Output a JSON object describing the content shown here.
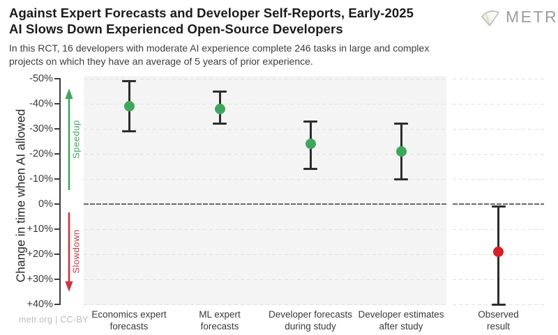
{
  "header": {
    "title_lines": [
      "Against Expert Forecasts and Developer Self-Reports, Early-2025",
      "AI Slows Down Experienced Open-Source Developers"
    ],
    "subtitle_lines": [
      "In this RCT, 16 developers with moderate AI experience complete 246 tasks in large and complex",
      "projects on which they have an average of 5 years of prior experience."
    ],
    "brand": "METR"
  },
  "footer": {
    "credit": "metr.org | CC-BY"
  },
  "chart_data": {
    "type": "scatter",
    "ylabel": "Change in time when AI allowed",
    "y_axis": {
      "min_pct": -50,
      "max_pct": 40,
      "orientation": "negative-is-up",
      "ticks": [
        {
          "value": -50,
          "label": "-50%"
        },
        {
          "value": -40,
          "label": "-40%"
        },
        {
          "value": -30,
          "label": "-30%"
        },
        {
          "value": -20,
          "label": "-20%"
        },
        {
          "value": -10,
          "label": "-10%"
        },
        {
          "value": 0,
          "label": "0%"
        },
        {
          "value": 10,
          "label": "+10%"
        },
        {
          "value": 20,
          "label": "+20%"
        },
        {
          "value": 30,
          "label": "+30%"
        },
        {
          "value": 40,
          "label": "+40%"
        }
      ]
    },
    "zero_line": true,
    "grid": "dashed-horizontal",
    "annotations": {
      "speedup_label": "Speedup",
      "slowdown_label": "Slowdown"
    },
    "colors": {
      "forecast_dot": "#3fa75d",
      "observed_dot": "#d42127",
      "speedup_arrow": "#3fa75d",
      "slowdown_arrow": "#c93540",
      "error_bar": "#2d2d2d",
      "panel_background": "#f4f4f4"
    },
    "panels": [
      {
        "name": "forecasts",
        "points": [
          {
            "id": "economics-expert-forecasts",
            "label_lines": [
              "Economics expert",
              "forecasts"
            ],
            "value_pct": -39,
            "ci_pct": [
              -49,
              -29
            ],
            "dot": "forecast"
          },
          {
            "id": "ml-expert-forecasts",
            "label_lines": [
              "ML expert",
              "forecasts"
            ],
            "value_pct": -38,
            "ci_pct": [
              -45,
              -32
            ],
            "dot": "forecast"
          },
          {
            "id": "developer-forecasts-during-study",
            "label_lines": [
              "Developer forecasts",
              "during study"
            ],
            "value_pct": -24,
            "ci_pct": [
              -33,
              -14
            ],
            "dot": "forecast"
          },
          {
            "id": "developer-estimates-after-study",
            "label_lines": [
              "Developer estimates",
              "after study"
            ],
            "value_pct": -21,
            "ci_pct": [
              -32,
              -10
            ],
            "dot": "forecast"
          }
        ]
      },
      {
        "name": "observed",
        "points": [
          {
            "id": "observed-result",
            "label_lines": [
              "Observed",
              "result"
            ],
            "value_pct": 19,
            "ci_pct": [
              1,
              40
            ],
            "dot": "observed"
          }
        ]
      }
    ]
  }
}
